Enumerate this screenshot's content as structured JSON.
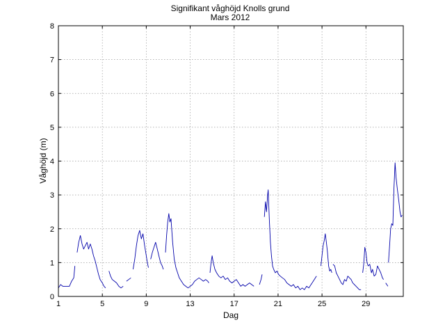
{
  "chart_data": {
    "type": "line",
    "title": "Signifikant våghöjd Knolls grund",
    "subtitle": "Mars 2012",
    "xlabel": "Dag",
    "ylabel": "Våghöjd (m)",
    "xlim": [
      1,
      32.4
    ],
    "ylim": [
      0,
      8
    ],
    "xticks": [
      1,
      5,
      9,
      13,
      17,
      21,
      25,
      29
    ],
    "yticks": [
      0,
      1,
      2,
      3,
      4,
      5,
      6,
      7,
      8
    ],
    "grid": true,
    "line_color": "#0000aa",
    "series": [
      {
        "segments": [
          [
            [
              1.0,
              0.25
            ],
            [
              1.2,
              0.35
            ],
            [
              1.4,
              0.3
            ],
            [
              1.6,
              0.3
            ],
            [
              1.8,
              0.3
            ],
            [
              2.0,
              0.3
            ],
            [
              2.2,
              0.45
            ],
            [
              2.4,
              0.55
            ],
            [
              2.5,
              0.9
            ]
          ],
          [
            [
              2.7,
              1.3
            ],
            [
              2.85,
              1.6
            ],
            [
              3.0,
              1.8
            ],
            [
              3.15,
              1.55
            ],
            [
              3.3,
              1.4
            ],
            [
              3.45,
              1.5
            ],
            [
              3.6,
              1.6
            ],
            [
              3.75,
              1.4
            ],
            [
              3.9,
              1.55
            ],
            [
              4.05,
              1.4
            ],
            [
              4.2,
              1.2
            ],
            [
              4.35,
              1.05
            ],
            [
              4.5,
              0.85
            ],
            [
              4.65,
              0.65
            ],
            [
              4.8,
              0.5
            ],
            [
              5.0,
              0.4
            ],
            [
              5.15,
              0.3
            ],
            [
              5.3,
              0.25
            ]
          ],
          [
            [
              5.6,
              0.75
            ],
            [
              5.75,
              0.6
            ],
            [
              5.9,
              0.5
            ],
            [
              6.1,
              0.45
            ],
            [
              6.3,
              0.4
            ],
            [
              6.5,
              0.3
            ],
            [
              6.7,
              0.25
            ],
            [
              6.9,
              0.3
            ]
          ],
          [
            [
              7.2,
              0.45
            ],
            [
              7.4,
              0.5
            ],
            [
              7.6,
              0.55
            ]
          ],
          [
            [
              7.8,
              0.8
            ],
            [
              7.95,
              1.1
            ],
            [
              8.1,
              1.5
            ],
            [
              8.25,
              1.8
            ],
            [
              8.4,
              1.95
            ],
            [
              8.55,
              1.7
            ],
            [
              8.7,
              1.85
            ],
            [
              8.85,
              1.5
            ],
            [
              9.0,
              1.2
            ],
            [
              9.1,
              1.0
            ],
            [
              9.2,
              0.85
            ]
          ],
          [
            [
              9.4,
              1.1
            ],
            [
              9.55,
              1.3
            ],
            [
              9.7,
              1.45
            ],
            [
              9.85,
              1.6
            ],
            [
              10.0,
              1.4
            ],
            [
              10.15,
              1.2
            ],
            [
              10.3,
              1.0
            ],
            [
              10.45,
              0.9
            ],
            [
              10.55,
              0.8
            ]
          ],
          [
            [
              10.75,
              1.3
            ],
            [
              10.85,
              1.8
            ],
            [
              10.95,
              2.2
            ],
            [
              11.05,
              2.45
            ],
            [
              11.15,
              2.2
            ],
            [
              11.25,
              2.3
            ],
            [
              11.4,
              1.6
            ],
            [
              11.55,
              1.1
            ],
            [
              11.7,
              0.85
            ],
            [
              11.85,
              0.7
            ],
            [
              12.0,
              0.55
            ],
            [
              12.2,
              0.45
            ],
            [
              12.4,
              0.35
            ],
            [
              12.6,
              0.3
            ],
            [
              12.8,
              0.25
            ],
            [
              13.0,
              0.3
            ],
            [
              13.2,
              0.35
            ],
            [
              13.4,
              0.45
            ],
            [
              13.6,
              0.5
            ],
            [
              13.8,
              0.55
            ],
            [
              14.0,
              0.5
            ],
            [
              14.2,
              0.45
            ],
            [
              14.4,
              0.5
            ],
            [
              14.6,
              0.45
            ],
            [
              14.7,
              0.4
            ]
          ],
          [
            [
              14.8,
              0.7
            ],
            [
              14.9,
              1.0
            ],
            [
              15.0,
              1.2
            ],
            [
              15.1,
              1.0
            ],
            [
              15.25,
              0.8
            ],
            [
              15.4,
              0.7
            ],
            [
              15.6,
              0.6
            ],
            [
              15.8,
              0.55
            ],
            [
              16.0,
              0.6
            ],
            [
              16.2,
              0.5
            ],
            [
              16.4,
              0.55
            ],
            [
              16.6,
              0.45
            ],
            [
              16.8,
              0.4
            ],
            [
              17.0,
              0.45
            ],
            [
              17.2,
              0.5
            ],
            [
              17.4,
              0.4
            ],
            [
              17.6,
              0.3
            ],
            [
              17.8,
              0.35
            ],
            [
              18.0,
              0.3
            ],
            [
              18.2,
              0.35
            ],
            [
              18.4,
              0.4
            ],
            [
              18.6,
              0.35
            ],
            [
              18.8,
              0.3
            ]
          ],
          [
            [
              19.3,
              0.35
            ],
            [
              19.45,
              0.5
            ],
            [
              19.55,
              0.65
            ]
          ],
          [
            [
              19.75,
              2.35
            ],
            [
              19.85,
              2.8
            ],
            [
              19.95,
              2.5
            ],
            [
              20.05,
              3.0
            ],
            [
              20.1,
              3.15
            ],
            [
              20.2,
              2.3
            ],
            [
              20.3,
              1.6
            ],
            [
              20.4,
              1.2
            ],
            [
              20.5,
              0.9
            ],
            [
              20.6,
              0.8
            ],
            [
              20.75,
              0.7
            ],
            [
              20.9,
              0.75
            ],
            [
              21.05,
              0.65
            ],
            [
              21.2,
              0.6
            ],
            [
              21.4,
              0.55
            ],
            [
              21.6,
              0.5
            ],
            [
              21.8,
              0.4
            ],
            [
              22.0,
              0.35
            ],
            [
              22.2,
              0.3
            ],
            [
              22.4,
              0.35
            ],
            [
              22.6,
              0.25
            ],
            [
              22.8,
              0.3
            ],
            [
              23.0,
              0.2
            ],
            [
              23.2,
              0.25
            ],
            [
              23.4,
              0.2
            ],
            [
              23.6,
              0.3
            ],
            [
              23.8,
              0.25
            ],
            [
              24.0,
              0.35
            ],
            [
              24.2,
              0.45
            ],
            [
              24.4,
              0.55
            ],
            [
              24.5,
              0.6
            ]
          ],
          [
            [
              24.9,
              0.9
            ],
            [
              25.0,
              1.2
            ],
            [
              25.1,
              1.5
            ],
            [
              25.2,
              1.65
            ],
            [
              25.3,
              1.85
            ],
            [
              25.4,
              1.6
            ],
            [
              25.5,
              1.3
            ],
            [
              25.6,
              0.9
            ],
            [
              25.7,
              0.75
            ],
            [
              25.8,
              0.8
            ],
            [
              25.9,
              0.7
            ]
          ],
          [
            [
              26.0,
              0.95
            ],
            [
              26.15,
              0.9
            ],
            [
              26.3,
              0.7
            ],
            [
              26.45,
              0.6
            ],
            [
              26.6,
              0.5
            ],
            [
              26.75,
              0.4
            ],
            [
              26.9,
              0.35
            ],
            [
              27.05,
              0.5
            ],
            [
              27.2,
              0.45
            ],
            [
              27.35,
              0.6
            ],
            [
              27.5,
              0.55
            ],
            [
              27.65,
              0.5
            ],
            [
              27.8,
              0.4
            ],
            [
              27.95,
              0.35
            ],
            [
              28.1,
              0.3
            ],
            [
              28.25,
              0.25
            ],
            [
              28.4,
              0.2
            ],
            [
              28.55,
              0.2
            ]
          ],
          [
            [
              28.7,
              0.7
            ],
            [
              28.8,
              0.95
            ],
            [
              28.9,
              1.45
            ],
            [
              29.0,
              1.3
            ],
            [
              29.1,
              1.0
            ],
            [
              29.2,
              0.9
            ],
            [
              29.35,
              0.95
            ],
            [
              29.5,
              0.7
            ],
            [
              29.6,
              0.8
            ],
            [
              29.75,
              0.6
            ],
            [
              29.9,
              0.65
            ],
            [
              30.05,
              0.9
            ],
            [
              30.2,
              0.8
            ],
            [
              30.35,
              0.7
            ],
            [
              30.5,
              0.55
            ],
            [
              30.6,
              0.5
            ]
          ],
          [
            [
              30.8,
              0.4
            ],
            [
              30.9,
              0.35
            ],
            [
              31.0,
              0.3
            ]
          ],
          [
            [
              31.05,
              1.0
            ],
            [
              31.15,
              1.5
            ],
            [
              31.25,
              2.0
            ],
            [
              31.35,
              2.15
            ],
            [
              31.45,
              2.1
            ],
            [
              31.55,
              3.2
            ],
            [
              31.65,
              3.95
            ],
            [
              31.75,
              3.5
            ],
            [
              31.85,
              3.2
            ],
            [
              32.0,
              2.8
            ],
            [
              32.1,
              2.5
            ],
            [
              32.2,
              2.35
            ],
            [
              32.3,
              2.4
            ]
          ]
        ]
      }
    ]
  }
}
